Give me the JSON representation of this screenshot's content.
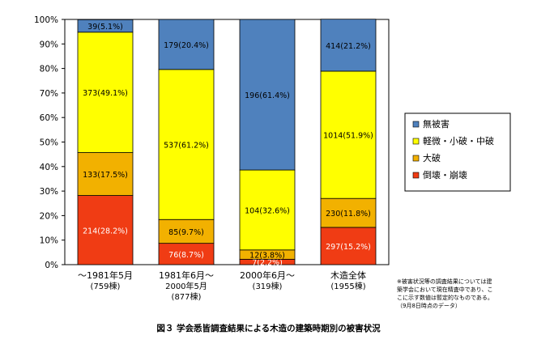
{
  "chart_data": {
    "type": "bar",
    "stacked": true,
    "percent": true,
    "categories": [
      {
        "line1": "～1981年5月",
        "line2": "(759棟)",
        "line3": ""
      },
      {
        "line1": "1981年6月～",
        "line2": "2000年5月",
        "line3": "(877棟)"
      },
      {
        "line1": "2000年6月～",
        "line2": "(319棟)",
        "line3": ""
      },
      {
        "line1": "木造全体",
        "line2": "(1955棟)",
        "line3": ""
      }
    ],
    "series": [
      {
        "name": "倒壊・崩壊",
        "color": "#f03c14",
        "label_color": "#ffffff",
        "values": [
          28.2,
          8.7,
          2.2,
          15.2
        ],
        "labels": [
          "214(28.2%)",
          "76(8.7%)",
          "7(2.2%)",
          "297(15.2%)"
        ]
      },
      {
        "name": "大破",
        "color": "#f2b100",
        "label_color": "#000000",
        "values": [
          17.5,
          9.7,
          3.8,
          11.8
        ],
        "labels": [
          "133(17.5%)",
          "85(9.7%)",
          "12(3.8%)",
          "230(11.8%)"
        ]
      },
      {
        "name": "軽微・小破・中破",
        "color": "#ffff00",
        "label_color": "#000000",
        "values": [
          49.1,
          61.2,
          32.6,
          51.9
        ],
        "labels": [
          "373(49.1%)",
          "537(61.2%)",
          "104(32.6%)",
          "1014(51.9%)"
        ]
      },
      {
        "name": "無被害",
        "color": "#4f81bd",
        "label_color": "#000000",
        "values": [
          5.1,
          20.4,
          61.4,
          21.2
        ],
        "labels": [
          "39(5.1%)",
          "179(20.4%)",
          "196(61.4%)",
          "414(21.2%)"
        ]
      }
    ],
    "legend_order": [
      "無被害",
      "軽微・小破・中破",
      "大破",
      "倒壊・崩壊"
    ],
    "ylim": [
      0,
      100
    ],
    "yticks": [
      "0%",
      "10%",
      "20%",
      "30%",
      "40%",
      "50%",
      "60%",
      "70%",
      "80%",
      "90%",
      "100%"
    ],
    "grid": false,
    "legend_position": "right"
  },
  "note": {
    "lines": [
      "※被害状況等の調査結果については建",
      "築学会において現在精査中であり、こ",
      "こに示す数値は暫定的なものである。",
      "（9月8日時点のデータ）"
    ]
  },
  "caption": "図３ 学会悉皆調査結果による木造の建築時期別の被害状況"
}
